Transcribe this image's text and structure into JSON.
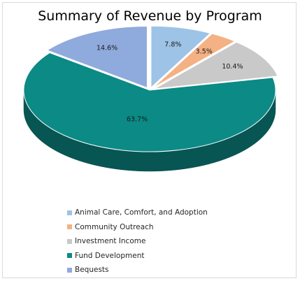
{
  "chart_data": {
    "type": "pie",
    "style": "3d",
    "title": "Summary of Revenue by Program",
    "slices": [
      {
        "name": "Animal Care, Comfort, and Adoption",
        "value": 7.8,
        "label": "7.8%",
        "color": "#9dc3e6"
      },
      {
        "name": "Community Outreach",
        "value": 3.5,
        "label": "3.5%",
        "color": "#f4b183"
      },
      {
        "name": "Investment Income",
        "value": 10.4,
        "label": "10.4%",
        "color": "#c9c9c9"
      },
      {
        "name": "Fund Development",
        "value": 63.7,
        "label": "63.7%",
        "color": "#0b8a86"
      },
      {
        "name": "Bequests",
        "value": 14.6,
        "label": "14.6%",
        "color": "#8faadc"
      }
    ],
    "legend_position": "bottom"
  }
}
